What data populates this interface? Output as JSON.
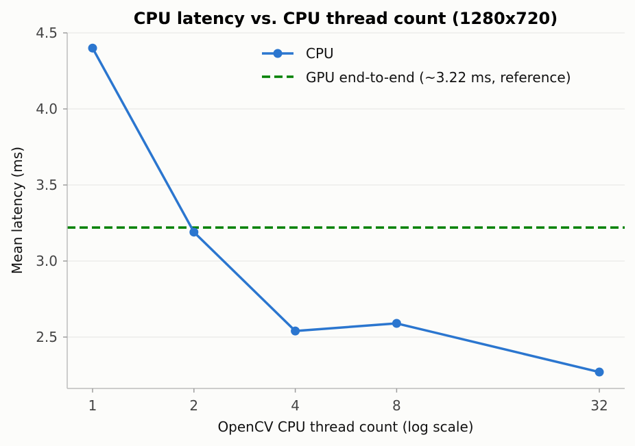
{
  "chart_data": {
    "type": "line",
    "title": "CPU latency vs. CPU thread count (1280x720)",
    "xlabel": "OpenCV CPU thread count (log scale)",
    "ylabel": "Mean latency (ms)",
    "x_scale": "log2",
    "x": [
      1,
      2,
      4,
      8,
      32
    ],
    "x_tick_labels": [
      "1",
      "2",
      "4",
      "8",
      "32"
    ],
    "y_ticks": [
      2.5,
      3.0,
      3.5,
      4.0,
      4.5
    ],
    "y_tick_labels": [
      "2.5",
      "3.0",
      "3.5",
      "4.0",
      "4.5"
    ],
    "ylim": [
      2.15,
      4.52
    ],
    "grid": "horizontal",
    "legend_position": "top-right",
    "series": [
      {
        "name": "CPU",
        "values": [
          4.4,
          3.19,
          2.54,
          2.59,
          2.27
        ],
        "color": "#2b76cf",
        "marker": "circle"
      }
    ],
    "reference_lines": [
      {
        "name": "GPU end-to-end (~3.22 ms, reference)",
        "value": 3.22,
        "color": "#008000",
        "style": "dashed"
      }
    ]
  }
}
